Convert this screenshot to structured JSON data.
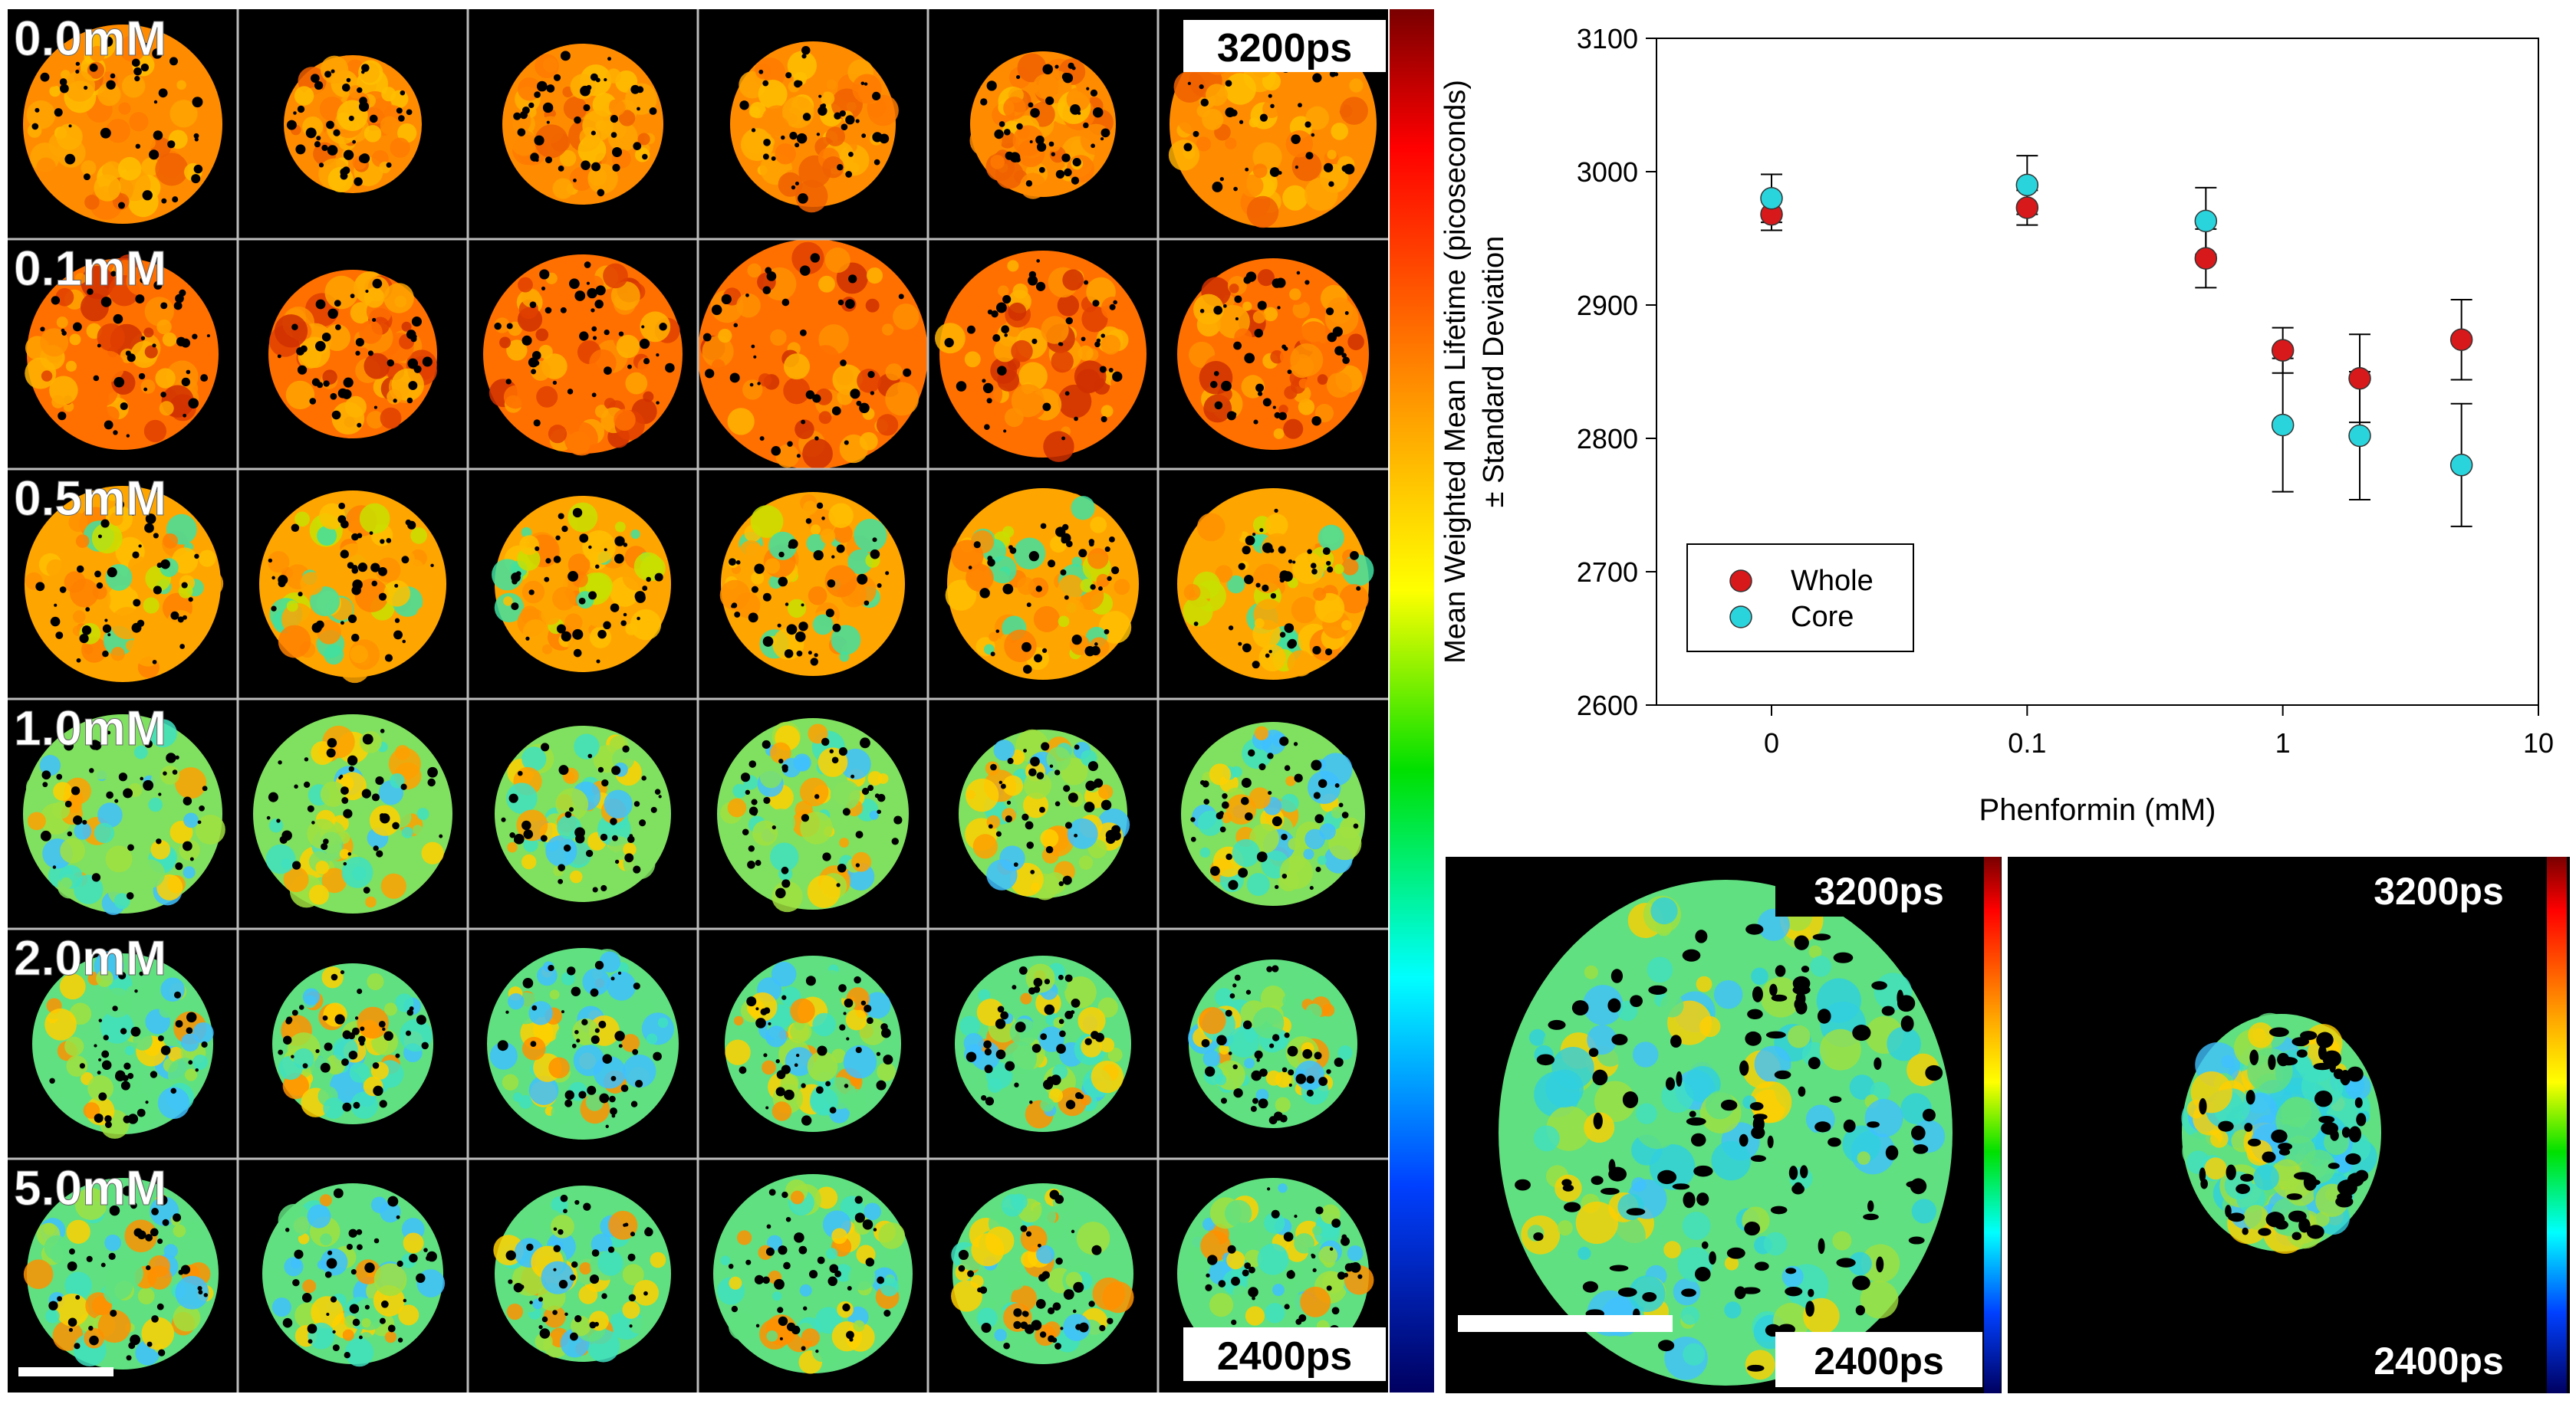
{
  "grid": {
    "rows": [
      {
        "label": "0.0mM",
        "palette": "warm"
      },
      {
        "label": "0.1mM",
        "palette": "hot"
      },
      {
        "label": "0.5mM",
        "palette": "warm-mix"
      },
      {
        "label": "1.0mM",
        "palette": "cool-mix"
      },
      {
        "label": "2.0mM",
        "palette": "cool"
      },
      {
        "label": "5.0mM",
        "palette": "cool"
      }
    ],
    "columns_per_row": 6,
    "colorbar_max_label": "3200ps",
    "colorbar_min_label": "2400ps"
  },
  "zoom": {
    "left": {
      "max_label": "3200ps",
      "min_label": "2400ps"
    },
    "right": {
      "max_label": "3200ps",
      "min_label": "2400ps"
    }
  },
  "colors": {
    "whole": "#d7191c",
    "core": "#2ad4dc",
    "gridline": "#bdbdbd"
  },
  "chart_data": {
    "type": "scatter",
    "xlabel": "Phenformin (mM)",
    "ylabel_line1": "Mean Weighted Mean Lifetime (picoseconds)",
    "ylabel_line2": "± Standard Deviation",
    "x_scale": "log (0 shown at axis start)",
    "x_ticks": [
      "0",
      "0.1",
      "1",
      "10"
    ],
    "ylim": [
      2600,
      3100
    ],
    "y_ticks": [
      2600,
      2700,
      2800,
      2900,
      3000,
      3100
    ],
    "legend_position": "lower-left",
    "series": [
      {
        "name": "Whole",
        "x": [
          0,
          0.1,
          0.5,
          1.0,
          2.0,
          5.0
        ],
        "y": [
          2968,
          2973,
          2935,
          2866,
          2845,
          2874
        ],
        "err": [
          12,
          13,
          22,
          17,
          33,
          30
        ]
      },
      {
        "name": "Core",
        "x": [
          0,
          0.1,
          0.5,
          1.0,
          2.0,
          5.0
        ],
        "y": [
          2980,
          2990,
          2963,
          2810,
          2802,
          2780
        ],
        "err": [
          18,
          22,
          25,
          50,
          48,
          46
        ]
      }
    ]
  }
}
